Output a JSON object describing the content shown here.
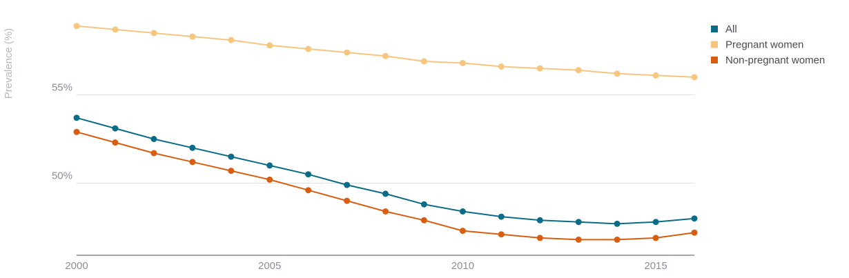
{
  "chart_data": {
    "type": "line",
    "title": "",
    "xlabel": "",
    "ylabel": "Prevalence (%)",
    "x": [
      2000,
      2001,
      2002,
      2003,
      2004,
      2005,
      2006,
      2007,
      2008,
      2009,
      2010,
      2011,
      2012,
      2013,
      2014,
      2015,
      2016
    ],
    "xlim": [
      2000,
      2016
    ],
    "ylim": [
      46,
      59
    ],
    "x_ticks": [
      {
        "value": 2000,
        "label": "2000"
      },
      {
        "value": 2005,
        "label": "2005"
      },
      {
        "value": 2010,
        "label": "2010"
      },
      {
        "value": 2015,
        "label": "2015"
      }
    ],
    "y_ticks": [
      {
        "value": 50,
        "label": "50%"
      },
      {
        "value": 55,
        "label": "55%"
      }
    ],
    "grid": true,
    "legend_position": "top-right",
    "series": [
      {
        "name": "All",
        "color": "#0a6c86",
        "values": [
          53.7,
          53.1,
          52.5,
          52.0,
          51.5,
          51.0,
          50.5,
          49.9,
          49.4,
          48.8,
          48.4,
          48.1,
          47.9,
          47.8,
          47.7,
          47.8,
          48.0
        ]
      },
      {
        "name": "Pregnant women",
        "color": "#f7c57d",
        "values": [
          58.9,
          58.7,
          58.5,
          58.3,
          58.1,
          57.8,
          57.6,
          57.4,
          57.2,
          56.9,
          56.8,
          56.6,
          56.5,
          56.4,
          56.2,
          56.1,
          56.0
        ]
      },
      {
        "name": "Non-pregnant women",
        "color": "#d95d10",
        "values": [
          52.9,
          52.3,
          51.7,
          51.2,
          50.7,
          50.2,
          49.6,
          49.0,
          48.4,
          47.9,
          47.3,
          47.1,
          46.9,
          46.8,
          46.8,
          46.9,
          47.2
        ]
      }
    ]
  }
}
